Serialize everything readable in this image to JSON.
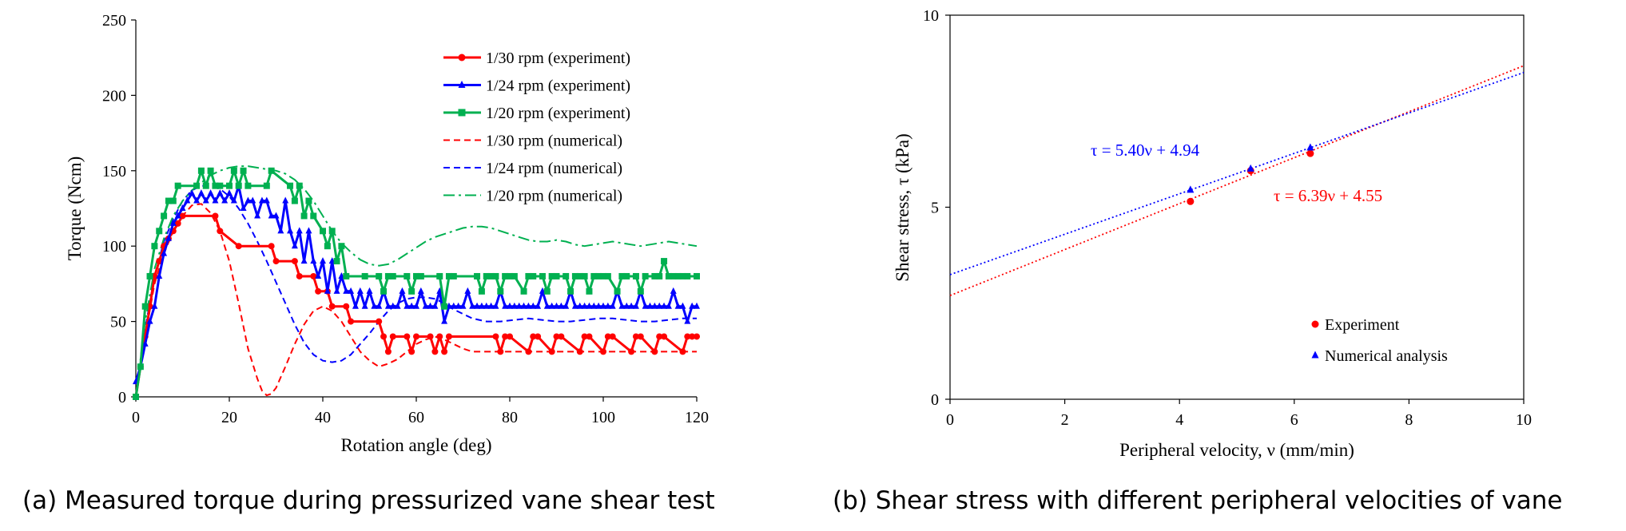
{
  "chart_data": [
    {
      "type": "line",
      "caption": "(a) Measured torque during pressurized vane shear test",
      "xlabel": "Rotation angle (deg)",
      "ylabel": "Torque (Ncm)",
      "xlim": [
        0,
        120
      ],
      "ylim": [
        0,
        250
      ],
      "xticks": [
        "0",
        "20",
        "40",
        "60",
        "80",
        "100",
        "120"
      ],
      "yticks": [
        "0",
        "50",
        "100",
        "150",
        "200",
        "250"
      ],
      "legend_position": "top-right",
      "series": [
        {
          "name": "1/30 rpm (experiment)",
          "color": "#ff0000",
          "style": "solid-marker-circle",
          "x": [
            0,
            1,
            2,
            3,
            4,
            5,
            6,
            7,
            8,
            9,
            10,
            17,
            18,
            22,
            29,
            30,
            34,
            35,
            38,
            39,
            41,
            42,
            45,
            46,
            52,
            53,
            54,
            55,
            58,
            59,
            60,
            63,
            64,
            65,
            66,
            67,
            77,
            78,
            79,
            80,
            84,
            85,
            86,
            89,
            90,
            91,
            95,
            96,
            97,
            100,
            101,
            102,
            106,
            107,
            108,
            111,
            112,
            113,
            117,
            118,
            119,
            120
          ],
          "y": [
            0,
            20,
            40,
            60,
            80,
            90,
            100,
            105,
            110,
            115,
            120,
            120,
            110,
            100,
            100,
            90,
            90,
            80,
            80,
            70,
            70,
            60,
            60,
            50,
            50,
            40,
            30,
            40,
            40,
            30,
            40,
            40,
            30,
            40,
            30,
            40,
            40,
            30,
            40,
            40,
            30,
            40,
            40,
            30,
            40,
            40,
            30,
            40,
            40,
            30,
            40,
            40,
            30,
            40,
            40,
            30,
            40,
            40,
            30,
            40,
            40,
            40
          ]
        },
        {
          "name": "1/24 rpm (experiment)",
          "color": "#0000ff",
          "style": "solid-marker-triangle",
          "x": [
            0,
            1,
            2,
            3,
            4,
            5,
            6,
            7,
            8,
            9,
            10,
            11,
            12,
            13,
            14,
            15,
            16,
            17,
            18,
            19,
            20,
            21,
            22,
            23,
            24,
            25,
            26,
            27,
            28,
            29,
            30,
            31,
            32,
            33,
            34,
            35,
            36,
            37,
            38,
            39,
            40,
            41,
            42,
            43,
            44,
            45,
            46,
            47,
            48,
            49,
            50,
            51,
            52,
            53,
            54,
            55,
            56,
            57,
            58,
            59,
            60,
            61,
            62,
            63,
            64,
            65,
            66,
            67,
            68,
            69,
            70,
            71,
            72,
            73,
            74,
            75,
            76,
            77,
            78,
            79,
            80,
            81,
            82,
            83,
            84,
            85,
            86,
            87,
            88,
            89,
            90,
            91,
            92,
            93,
            94,
            95,
            96,
            97,
            98,
            99,
            100,
            101,
            102,
            103,
            104,
            105,
            106,
            107,
            108,
            109,
            110,
            111,
            112,
            113,
            114,
            115,
            116,
            117,
            118,
            119,
            120
          ],
          "y": [
            10,
            20,
            35,
            50,
            60,
            80,
            95,
            105,
            115,
            120,
            125,
            130,
            135,
            130,
            135,
            130,
            135,
            130,
            135,
            130,
            135,
            130,
            140,
            125,
            130,
            130,
            120,
            130,
            130,
            120,
            120,
            110,
            130,
            110,
            100,
            110,
            90,
            110,
            90,
            80,
            90,
            70,
            90,
            70,
            80,
            70,
            70,
            60,
            70,
            60,
            70,
            60,
            60,
            70,
            60,
            60,
            60,
            70,
            60,
            60,
            60,
            70,
            60,
            60,
            60,
            70,
            50,
            60,
            60,
            60,
            60,
            70,
            60,
            60,
            60,
            60,
            60,
            60,
            70,
            60,
            60,
            60,
            60,
            60,
            60,
            60,
            60,
            70,
            60,
            60,
            60,
            60,
            60,
            70,
            60,
            60,
            60,
            60,
            60,
            60,
            60,
            60,
            60,
            70,
            60,
            60,
            60,
            60,
            70,
            60,
            60,
            60,
            60,
            60,
            60,
            70,
            60,
            60,
            50,
            60,
            60
          ]
        },
        {
          "name": "1/20 rpm (experiment)",
          "color": "#00b050",
          "style": "solid-marker-square",
          "x": [
            0,
            1,
            2,
            3,
            4,
            5,
            6,
            7,
            8,
            9,
            13,
            14,
            15,
            16,
            17,
            18,
            20,
            21,
            22,
            23,
            24,
            28,
            29,
            33,
            34,
            35,
            36,
            37,
            38,
            40,
            41,
            42,
            43,
            44,
            45,
            49,
            52,
            53,
            54,
            55,
            58,
            59,
            60,
            61,
            65,
            66,
            67,
            68,
            73,
            74,
            75,
            76,
            77,
            78,
            79,
            80,
            81,
            83,
            84,
            85,
            87,
            88,
            89,
            90,
            92,
            93,
            94,
            95,
            96,
            97,
            98,
            99,
            100,
            101,
            103,
            104,
            105,
            107,
            108,
            109,
            111,
            112,
            113,
            114,
            115,
            116,
            117,
            118,
            120
          ],
          "y": [
            0,
            20,
            60,
            80,
            100,
            110,
            120,
            130,
            130,
            140,
            140,
            150,
            140,
            150,
            140,
            140,
            140,
            150,
            140,
            150,
            140,
            140,
            150,
            140,
            130,
            140,
            120,
            130,
            120,
            110,
            100,
            110,
            90,
            100,
            80,
            80,
            80,
            70,
            80,
            80,
            80,
            70,
            80,
            80,
            80,
            60,
            80,
            80,
            80,
            70,
            80,
            80,
            80,
            70,
            80,
            80,
            80,
            70,
            80,
            80,
            80,
            70,
            80,
            80,
            80,
            70,
            80,
            80,
            80,
            70,
            80,
            80,
            80,
            80,
            70,
            80,
            80,
            80,
            70,
            80,
            80,
            80,
            90,
            80,
            80,
            80,
            80,
            80,
            80
          ]
        },
        {
          "name": "1/30 rpm (numerical)",
          "color": "#ff0000",
          "style": "dashed",
          "x": [
            0,
            2,
            4,
            6,
            8,
            10,
            12,
            14,
            16,
            18,
            20,
            22,
            24,
            26,
            27,
            28,
            29,
            30,
            32,
            34,
            36,
            38,
            40,
            42,
            44,
            46,
            48,
            50,
            52,
            54,
            56,
            58,
            60,
            62,
            64,
            66,
            68,
            70,
            72,
            74,
            76,
            78,
            80,
            84,
            88,
            92,
            96,
            100,
            104,
            108,
            112,
            116,
            120
          ],
          "y": [
            0,
            40,
            75,
            95,
            110,
            120,
            127,
            128,
            122,
            110,
            90,
            62,
            32,
            12,
            4,
            1,
            2,
            6,
            20,
            35,
            48,
            57,
            60,
            57,
            50,
            40,
            30,
            24,
            20,
            22,
            25,
            30,
            35,
            38,
            40,
            38,
            35,
            32,
            30,
            30,
            30,
            30,
            30,
            30,
            30,
            30,
            30,
            30,
            30,
            30,
            30,
            30,
            30
          ]
        },
        {
          "name": "1/24 rpm (numerical)",
          "color": "#0000ff",
          "style": "dashed",
          "x": [
            0,
            2,
            4,
            6,
            8,
            10,
            12,
            14,
            16,
            18,
            20,
            22,
            24,
            26,
            28,
            30,
            32,
            34,
            36,
            38,
            40,
            42,
            44,
            46,
            48,
            50,
            52,
            54,
            56,
            58,
            60,
            62,
            64,
            66,
            68,
            70,
            72,
            75,
            78,
            81,
            84,
            87,
            90,
            93,
            96,
            99,
            102,
            105,
            108,
            111,
            114,
            117,
            120
          ],
          "y": [
            0,
            45,
            80,
            103,
            118,
            130,
            137,
            140,
            140,
            138,
            133,
            125,
            115,
            103,
            90,
            76,
            62,
            48,
            36,
            28,
            24,
            23,
            24,
            28,
            35,
            42,
            50,
            57,
            62,
            65,
            66,
            66,
            65,
            62,
            58,
            55,
            52,
            50,
            50,
            51,
            52,
            51,
            50,
            50,
            51,
            52,
            52,
            51,
            50,
            50,
            51,
            52,
            52
          ]
        },
        {
          "name": "1/20 rpm  (numerical)",
          "color": "#00b050",
          "style": "dash-dot",
          "x": [
            0,
            2,
            4,
            6,
            8,
            10,
            12,
            14,
            16,
            18,
            20,
            22,
            24,
            26,
            28,
            30,
            32,
            34,
            36,
            38,
            40,
            42,
            44,
            46,
            48,
            50,
            52,
            54,
            56,
            58,
            60,
            62,
            64,
            66,
            68,
            70,
            72,
            74,
            76,
            78,
            80,
            82,
            84,
            86,
            88,
            90,
            92,
            94,
            96,
            98,
            100,
            102,
            104,
            106,
            108,
            110,
            112,
            114,
            116,
            118,
            120
          ],
          "y": [
            0,
            50,
            85,
            105,
            120,
            130,
            137,
            142,
            147,
            150,
            152,
            153,
            153,
            152,
            151,
            150,
            148,
            144,
            138,
            130,
            120,
            110,
            102,
            96,
            91,
            88,
            87,
            88,
            91,
            95,
            99,
            103,
            106,
            108,
            110,
            112,
            113,
            113,
            112,
            110,
            108,
            106,
            104,
            103,
            103,
            104,
            103,
            101,
            100,
            101,
            102,
            103,
            102,
            101,
            100,
            101,
            102,
            103,
            102,
            101,
            100
          ]
        }
      ]
    },
    {
      "type": "scatter",
      "caption": "(b) Shear stress with different peripheral velocities of vane",
      "xlabel": "Peripheral velocity, ν (mm/min)",
      "ylabel": "Shear stress, τ (kPa)",
      "xlim": [
        0,
        10
      ],
      "ylim": [
        0,
        10
      ],
      "xticks": [
        "0",
        "2",
        "4",
        "6",
        "8",
        "10"
      ],
      "yticks": [
        "0",
        "5",
        "10"
      ],
      "legend_position": "bottom-right",
      "series": [
        {
          "name": "Experiment",
          "color": "#ff0000",
          "marker": "circle",
          "x": [
            4.19,
            5.24,
            6.28
          ],
          "y": [
            5.15,
            5.95,
            6.4
          ],
          "trendline": {
            "slope": 6.39,
            "intercept": 4.55,
            "label": "τ = 6.39ν + 4.55"
          }
        },
        {
          "name": "Numerical analysis",
          "color": "#0000ff",
          "marker": "triangle",
          "x": [
            4.19,
            5.24,
            6.28
          ],
          "y": [
            5.45,
            6.0,
            6.55
          ],
          "trendline": {
            "slope": 5.4,
            "intercept": 4.94,
            "label": "τ = 5.40ν + 4.94"
          }
        }
      ]
    }
  ]
}
